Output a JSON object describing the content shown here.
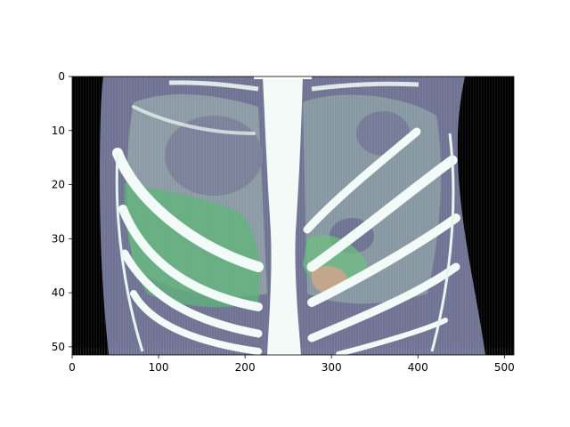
{
  "figure": {
    "x_ticks": [
      {
        "value": 0,
        "label": "0"
      },
      {
        "value": 100,
        "label": "100"
      },
      {
        "value": 200,
        "label": "200"
      },
      {
        "value": 300,
        "label": "300"
      },
      {
        "value": 400,
        "label": "400"
      },
      {
        "value": 500,
        "label": "500"
      }
    ],
    "y_ticks": [
      {
        "value": 0,
        "label": "0"
      },
      {
        "value": 10,
        "label": "10"
      },
      {
        "value": 20,
        "label": "20"
      },
      {
        "value": 30,
        "label": "30"
      },
      {
        "value": 40,
        "label": "40"
      },
      {
        "value": 50,
        "label": "50"
      }
    ],
    "x_range": [
      0,
      511
    ],
    "y_range": [
      0,
      51.5
    ],
    "image_content": "coronal CT slice of chest with rib cage, spine, and colored segmentation overlays",
    "colors": {
      "background_outside_body": "#000000",
      "soft_tissue": "#6f7393",
      "lung_region": "#93a9a6",
      "bone": "#f2fbf8",
      "overlay_liver": "#5fb57a",
      "overlay_small_green": "#6cc07f",
      "overlay_tan": "#c7a58c"
    }
  }
}
